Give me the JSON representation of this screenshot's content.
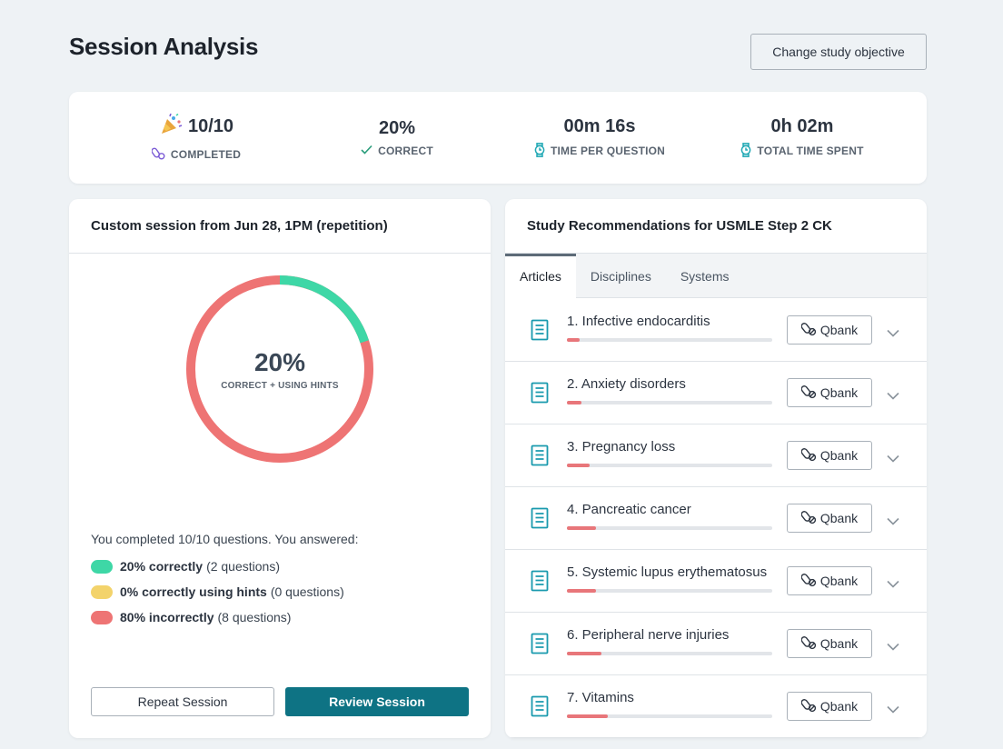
{
  "page": {
    "title": "Session Analysis",
    "objective_button": "Change study objective"
  },
  "stats": [
    {
      "value": "10/10",
      "label": "COMPLETED",
      "icon": "party-popper-icon",
      "label_icon": "pills-icon"
    },
    {
      "value": "20%",
      "label": "CORRECT",
      "label_icon": "check-icon"
    },
    {
      "value": "00m 16s",
      "label": "TIME PER QUESTION",
      "label_icon": "watch-icon"
    },
    {
      "value": "0h 02m",
      "label": "TOTAL TIME SPENT",
      "label_icon": "watch-icon"
    }
  ],
  "session": {
    "title": "Custom session from Jun 28, 1PM (repetition)",
    "donut": {
      "percent": "20%",
      "caption": "CORRECT + USING HINTS",
      "correct_fraction": 0.2,
      "incorrect_fraction": 0.8,
      "correct_color": "#3ed7a6",
      "incorrect_color": "#ee7474"
    },
    "summary": "You completed 10/10 questions. You answered:",
    "legend": [
      {
        "bold": "20% correctly",
        "rest": "(2 questions)",
        "color": "#3ed7a6"
      },
      {
        "bold": "0% correctly using hints",
        "rest": "(0 questions)",
        "color": "#f3d36b"
      },
      {
        "bold": "80% incorrectly",
        "rest": "(8 questions)",
        "color": "#ee7474"
      }
    ],
    "repeat_button": "Repeat Session",
    "review_button": "Review Session"
  },
  "recommendations": {
    "title": "Study Recommendations for USMLE Step 2 CK",
    "tabs": [
      "Articles",
      "Disciplines",
      "Systems"
    ],
    "active_tab": "Articles",
    "qbank_label": "Qbank",
    "items": [
      {
        "title": "1. Infective endocarditis",
        "progress": 0.06
      },
      {
        "title": "2. Anxiety disorders",
        "progress": 0.07
      },
      {
        "title": "3. Pregnancy loss",
        "progress": 0.11
      },
      {
        "title": "4. Pancreatic cancer",
        "progress": 0.14
      },
      {
        "title": "5. Systemic lupus erythematosus",
        "progress": 0.14
      },
      {
        "title": "6. Peripheral nerve injuries",
        "progress": 0.17
      },
      {
        "title": "7. Vitamins",
        "progress": 0.2
      }
    ]
  }
}
